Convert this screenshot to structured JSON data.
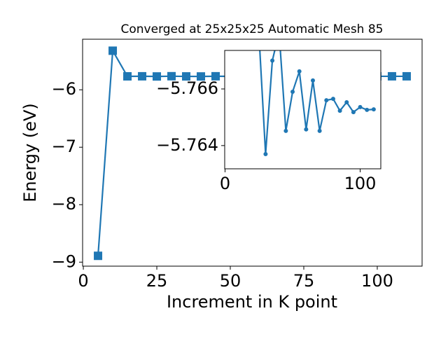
{
  "chart_data": [
    {
      "type": "line",
      "title": "Converged at 25x25x25 Automatic Mesh 85",
      "x_label": "Increment in K point",
      "y_label": "Energy (eV)",
      "marker": "square",
      "x": [
        5,
        10,
        15,
        20,
        25,
        30,
        35,
        40,
        45,
        50,
        55,
        60,
        65,
        70,
        75,
        80,
        85,
        90,
        95,
        100,
        105,
        110
      ],
      "series": [
        {
          "color": "#1f77b4",
          "values": [
            -8.89,
            -5.32,
            -5.766,
            -5.765,
            -5.768,
            -5.7637,
            -5.767,
            -5.768,
            -5.76452,
            -5.7659,
            -5.76662,
            -5.76457,
            -5.7663,
            -5.76452,
            -5.7656,
            -5.76565,
            -5.76523,
            -5.76553,
            -5.76518,
            -5.76536,
            -5.76526,
            -5.76528
          ]
        }
      ],
      "xlim": [
        -0.25,
        115.25
      ],
      "xticks": [
        0,
        25,
        50,
        75,
        100
      ],
      "ylim": [
        -9.07,
        -5.12
      ],
      "yticks": [
        {
          "value": -9,
          "label": "−9"
        },
        {
          "value": -8,
          "label": "−8"
        },
        {
          "value": -7,
          "label": "−7"
        },
        {
          "value": -6,
          "label": "−6"
        }
      ]
    },
    {
      "type": "line",
      "marker": "circle",
      "x": [
        25,
        30,
        35,
        40,
        45,
        50,
        55,
        60,
        65,
        70,
        75,
        80,
        85,
        90,
        95,
        100,
        105,
        110
      ],
      "series": [
        {
          "color": "#1f77b4",
          "values": [
            -5.768,
            -5.7637,
            -5.767,
            -5.768,
            -5.76452,
            -5.7659,
            -5.76662,
            -5.76457,
            -5.7663,
            -5.76452,
            -5.7656,
            -5.76565,
            -5.76523,
            -5.76553,
            -5.76518,
            -5.76536,
            -5.76526,
            -5.76528
          ]
        }
      ],
      "xlim": [
        -0.25,
        115.25
      ],
      "xticks": [
        0,
        100
      ],
      "ylim": [
        -5.76318,
        -5.76736
      ],
      "yticks": [
        {
          "value": -5.766,
          "label": "−5.766"
        },
        {
          "value": -5.764,
          "label": "−5.764"
        }
      ]
    }
  ]
}
